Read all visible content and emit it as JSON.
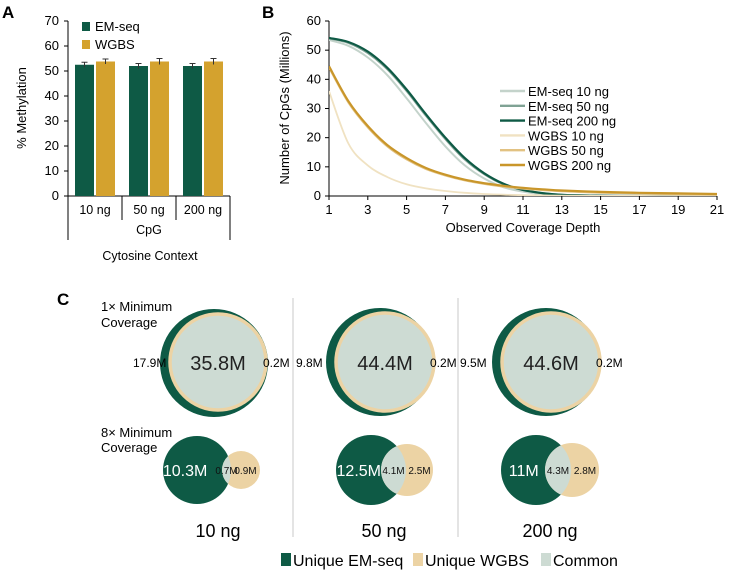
{
  "colors": {
    "em_seq": "#0e5a45",
    "wgbs": "#d4a22e",
    "common": "#cddbd3",
    "wgbs_light": "#ecd3a4",
    "em10": "#c4d3cb",
    "em50": "#7fa294",
    "em200": "#0e5a45",
    "w10": "#f0e2c2",
    "w50": "#e2c282",
    "w200": "#c9962a"
  },
  "panels": {
    "a_label": "A",
    "b_label": "B",
    "c_label": "C"
  },
  "chart_data": [
    {
      "type": "bar",
      "title": "",
      "ylabel": "% Methylation",
      "xlabel": "Cytosine Context",
      "group_label": "CpG",
      "ylim": [
        0,
        70
      ],
      "yticks": [
        0,
        10,
        20,
        30,
        40,
        50,
        60,
        70
      ],
      "categories": [
        "10 ng",
        "50 ng",
        "200 ng"
      ],
      "legend_position": "top-left",
      "series": [
        {
          "name": "EM-seq",
          "values": [
            52.5,
            52.0,
            52.0
          ],
          "error": [
            1.0,
            1.0,
            1.0
          ]
        },
        {
          "name": "WGBS",
          "values": [
            53.8,
            53.8,
            53.8
          ],
          "error": [
            1.0,
            1.2,
            1.2
          ]
        }
      ]
    },
    {
      "type": "line",
      "title": "",
      "xlabel": "Observed Coverage Depth",
      "ylabel": "Number of CpGs (Millions)",
      "xlim": [
        1,
        21
      ],
      "ylim": [
        0,
        60
      ],
      "xticks": [
        1,
        3,
        5,
        7,
        9,
        11,
        13,
        15,
        17,
        19,
        21
      ],
      "yticks": [
        0,
        10,
        20,
        30,
        40,
        50,
        60
      ],
      "legend_position": "right",
      "x": [
        1,
        2,
        3,
        4,
        5,
        6,
        7,
        8,
        9,
        10,
        11,
        12,
        13,
        15,
        17,
        19,
        21
      ],
      "series": [
        {
          "name": "EM-seq 10 ng",
          "values": [
            53.5,
            51.5,
            47.5,
            41.5,
            33.5,
            25.0,
            17.0,
            10.5,
            6.0,
            3.0,
            1.5,
            0.6,
            0.3,
            0.1,
            0.0,
            0.0,
            0.0
          ]
        },
        {
          "name": "EM-seq 50 ng",
          "values": [
            54.0,
            52.5,
            49.0,
            43.5,
            36.0,
            27.5,
            19.5,
            12.5,
            7.5,
            4.0,
            2.0,
            1.0,
            0.4,
            0.1,
            0.0,
            0.0,
            0.0
          ]
        },
        {
          "name": "EM-seq 200 ng",
          "values": [
            54.2,
            52.8,
            49.5,
            44.0,
            36.5,
            28.0,
            20.0,
            13.0,
            7.8,
            4.2,
            2.1,
            1.0,
            0.4,
            0.1,
            0.0,
            0.0,
            0.0
          ]
        },
        {
          "name": "WGBS 10 ng",
          "values": [
            36.0,
            18.0,
            10.5,
            6.5,
            4.0,
            2.6,
            1.7,
            1.1,
            0.7,
            0.45,
            0.3,
            0.2,
            0.12,
            0.05,
            0.02,
            0.0,
            0.0
          ]
        },
        {
          "name": "WGBS 50 ng",
          "values": [
            44.0,
            32.0,
            23.5,
            17.0,
            12.5,
            9.2,
            7.0,
            5.3,
            4.1,
            3.2,
            2.5,
            2.0,
            1.6,
            1.1,
            0.8,
            0.6,
            0.4
          ]
        },
        {
          "name": "WGBS 200 ng",
          "values": [
            44.5,
            32.5,
            24.0,
            17.5,
            13.0,
            9.6,
            7.3,
            5.6,
            4.4,
            3.5,
            2.8,
            2.3,
            1.9,
            1.4,
            1.1,
            0.9,
            0.7
          ]
        }
      ]
    },
    {
      "type": "venn",
      "row_labels": [
        [
          "1× Minimum",
          "Coverage"
        ],
        [
          "8× Minimum",
          "Coverage"
        ]
      ],
      "columns": [
        "10 ng",
        "50 ng",
        "200 ng"
      ],
      "legend": [
        "Unique EM-seq",
        "Unique WGBS",
        "Common"
      ],
      "rows": [
        [
          {
            "unique_em": "17.9M",
            "common": "35.8M",
            "unique_wgbs": "0.2M"
          },
          {
            "unique_em": "9.8M",
            "common": "44.4M",
            "unique_wgbs": "0.2M"
          },
          {
            "unique_em": "9.5M",
            "common": "44.6M",
            "unique_wgbs": "0.2M"
          }
        ],
        [
          {
            "unique_em": "10.3M",
            "common": "0.7M",
            "unique_wgbs": "0.9M"
          },
          {
            "unique_em": "12.5M",
            "common": "4.1M",
            "unique_wgbs": "2.5M"
          },
          {
            "unique_em": "11M",
            "common": "4.3M",
            "unique_wgbs": "2.8M"
          }
        ]
      ]
    }
  ]
}
